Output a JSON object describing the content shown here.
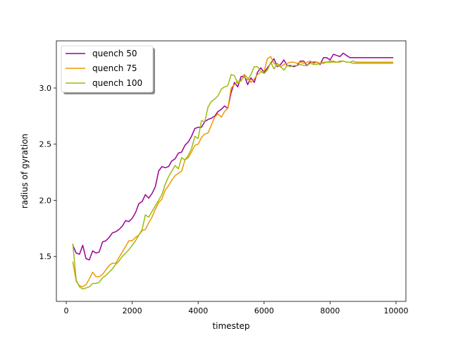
{
  "chart_data": {
    "type": "line",
    "xlabel": "timestep",
    "ylabel": "radius of gyration",
    "xlim": [
      -300,
      10300
    ],
    "ylim": [
      1.1,
      3.42
    ],
    "xticks": [
      0,
      2000,
      4000,
      6000,
      8000,
      10000
    ],
    "yticks": [
      1.5,
      2.0,
      2.5,
      3.0
    ],
    "xtick_labels": [
      "0",
      "2000",
      "4000",
      "6000",
      "8000",
      "10000"
    ],
    "ytick_labels": [
      "1.5",
      "2.0",
      "2.5",
      "3.0"
    ],
    "grid": false,
    "legend": {
      "position": "upper-left",
      "entries": [
        "quench 50",
        "quench 75",
        "quench 100"
      ]
    },
    "series": [
      {
        "name": "quench 50",
        "color": "#990099",
        "x": [
          200,
          300,
          400,
          500,
          600,
          700,
          800,
          900,
          1000,
          1100,
          1200,
          1300,
          1400,
          1500,
          1600,
          1700,
          1800,
          1900,
          2000,
          2100,
          2200,
          2300,
          2400,
          2500,
          2600,
          2700,
          2800,
          2900,
          3000,
          3100,
          3200,
          3300,
          3400,
          3500,
          3600,
          3700,
          3800,
          3900,
          4000,
          4100,
          4200,
          4300,
          4400,
          4500,
          4600,
          4700,
          4800,
          4900,
          5000,
          5100,
          5200,
          5300,
          5400,
          5500,
          5600,
          5700,
          5800,
          5900,
          6000,
          6100,
          6200,
          6300,
          6400,
          6500,
          6600,
          6700,
          6800,
          6900,
          7000,
          7100,
          7200,
          7300,
          7400,
          7500,
          7600,
          7700,
          7800,
          7900,
          8000,
          8100,
          8200,
          8300,
          8400,
          8500,
          8600,
          8700,
          8800,
          8900,
          9000,
          9100,
          9200,
          9300,
          9400,
          9500,
          9600,
          9700,
          9800,
          9900
        ],
        "values": [
          1.6,
          1.53,
          1.52,
          1.6,
          1.48,
          1.47,
          1.55,
          1.53,
          1.54,
          1.63,
          1.64,
          1.67,
          1.71,
          1.72,
          1.74,
          1.77,
          1.82,
          1.81,
          1.84,
          1.89,
          1.97,
          1.99,
          2.05,
          2.02,
          2.06,
          2.12,
          2.26,
          2.3,
          2.29,
          2.3,
          2.35,
          2.37,
          2.42,
          2.43,
          2.49,
          2.52,
          2.57,
          2.64,
          2.65,
          2.65,
          2.7,
          2.72,
          2.73,
          2.75,
          2.79,
          2.81,
          2.84,
          2.82,
          2.96,
          3.05,
          3.01,
          3.1,
          3.11,
          3.03,
          3.09,
          3.05,
          3.14,
          3.18,
          3.14,
          3.18,
          3.22,
          3.26,
          3.19,
          3.21,
          3.25,
          3.2,
          3.2,
          3.19,
          3.2,
          3.24,
          3.24,
          3.2,
          3.23,
          3.23,
          3.23,
          3.21,
          3.27,
          3.27,
          3.25,
          3.3,
          3.29,
          3.28,
          3.31,
          3.29,
          3.27,
          3.27,
          3.27,
          3.27,
          3.27,
          3.27,
          3.27,
          3.27,
          3.27,
          3.27,
          3.27,
          3.27,
          3.27,
          3.27
        ]
      },
      {
        "name": "quench 75",
        "color": "#ee9900",
        "x": [
          200,
          300,
          400,
          500,
          600,
          700,
          800,
          900,
          1000,
          1100,
          1200,
          1300,
          1400,
          1500,
          1600,
          1700,
          1800,
          1900,
          2000,
          2100,
          2200,
          2300,
          2400,
          2500,
          2600,
          2700,
          2800,
          2900,
          3000,
          3100,
          3200,
          3300,
          3400,
          3500,
          3600,
          3700,
          3800,
          3900,
          4000,
          4100,
          4200,
          4300,
          4400,
          4500,
          4600,
          4700,
          4800,
          4900,
          5000,
          5100,
          5200,
          5300,
          5400,
          5500,
          5600,
          5700,
          5800,
          5900,
          6000,
          6100,
          6200,
          6300,
          6400,
          6500,
          6600,
          6700,
          6800,
          6900,
          7000,
          7100,
          7200,
          7300,
          7400,
          7500,
          7600,
          7700,
          7800,
          7900,
          8000,
          8100,
          8200,
          8300,
          8400,
          8500,
          8600,
          8700,
          8800,
          8900,
          9000,
          9100,
          9200,
          9300,
          9400,
          9500,
          9600,
          9700,
          9800,
          9900
        ],
        "values": [
          1.45,
          1.28,
          1.24,
          1.23,
          1.25,
          1.3,
          1.36,
          1.32,
          1.32,
          1.34,
          1.38,
          1.42,
          1.44,
          1.44,
          1.49,
          1.54,
          1.59,
          1.64,
          1.64,
          1.67,
          1.69,
          1.73,
          1.74,
          1.8,
          1.85,
          1.92,
          1.98,
          2.01,
          2.09,
          2.13,
          2.18,
          2.22,
          2.24,
          2.26,
          2.36,
          2.38,
          2.43,
          2.49,
          2.5,
          2.56,
          2.59,
          2.6,
          2.67,
          2.74,
          2.77,
          2.74,
          2.79,
          2.82,
          3.0,
          3.03,
          3.06,
          3.06,
          3.12,
          3.09,
          3.05,
          3.08,
          3.12,
          3.14,
          3.15,
          3.26,
          3.28,
          3.22,
          3.2,
          3.19,
          3.21,
          3.22,
          3.23,
          3.23,
          3.22,
          3.23,
          3.22,
          3.23,
          3.24,
          3.22,
          3.23,
          3.22,
          3.23,
          3.23,
          3.24,
          3.24,
          3.23,
          3.23,
          3.24,
          3.23,
          3.23,
          3.24,
          3.23,
          3.23,
          3.23,
          3.23,
          3.23,
          3.23,
          3.23,
          3.23,
          3.23,
          3.23,
          3.23,
          3.23
        ]
      },
      {
        "name": "quench 100",
        "color": "#99bb11",
        "x": [
          200,
          300,
          400,
          500,
          600,
          700,
          800,
          900,
          1000,
          1100,
          1200,
          1300,
          1400,
          1500,
          1600,
          1700,
          1800,
          1900,
          2000,
          2100,
          2200,
          2300,
          2400,
          2500,
          2600,
          2700,
          2800,
          2900,
          3000,
          3100,
          3200,
          3300,
          3400,
          3500,
          3600,
          3700,
          3800,
          3900,
          4000,
          4100,
          4200,
          4300,
          4400,
          4500,
          4600,
          4700,
          4800,
          4900,
          5000,
          5100,
          5200,
          5300,
          5400,
          5500,
          5600,
          5700,
          5800,
          5900,
          6000,
          6100,
          6200,
          6300,
          6400,
          6500,
          6600,
          6700,
          6800,
          6900,
          7000,
          7100,
          7200,
          7300,
          7400,
          7500,
          7600,
          7700,
          7800,
          7900,
          8000,
          8100,
          8200,
          8300,
          8400,
          8500,
          8600,
          8700,
          8800,
          8900,
          9000,
          9100,
          9200,
          9300,
          9400,
          9500,
          9600,
          9700,
          9800,
          9900
        ],
        "values": [
          1.61,
          1.29,
          1.23,
          1.21,
          1.22,
          1.23,
          1.26,
          1.26,
          1.27,
          1.31,
          1.33,
          1.36,
          1.39,
          1.43,
          1.46,
          1.5,
          1.53,
          1.56,
          1.6,
          1.64,
          1.69,
          1.74,
          1.87,
          1.85,
          1.9,
          1.95,
          2.0,
          2.05,
          2.14,
          2.21,
          2.26,
          2.31,
          2.28,
          2.38,
          2.36,
          2.4,
          2.46,
          2.57,
          2.55,
          2.71,
          2.7,
          2.83,
          2.88,
          2.9,
          2.93,
          2.99,
          3.01,
          3.02,
          3.12,
          3.11,
          3.04,
          3.07,
          3.1,
          3.07,
          3.12,
          3.19,
          3.19,
          3.15,
          3.13,
          3.16,
          3.23,
          3.17,
          3.22,
          3.19,
          3.16,
          3.2,
          3.19,
          3.2,
          3.2,
          3.21,
          3.2,
          3.2,
          3.22,
          3.21,
          3.21,
          3.22,
          3.22,
          3.23,
          3.23,
          3.23,
          3.23,
          3.24,
          3.24,
          3.23,
          3.23,
          3.22,
          3.22,
          3.22,
          3.22,
          3.22,
          3.22,
          3.22,
          3.22,
          3.22,
          3.22,
          3.22,
          3.22,
          3.22
        ]
      }
    ]
  }
}
